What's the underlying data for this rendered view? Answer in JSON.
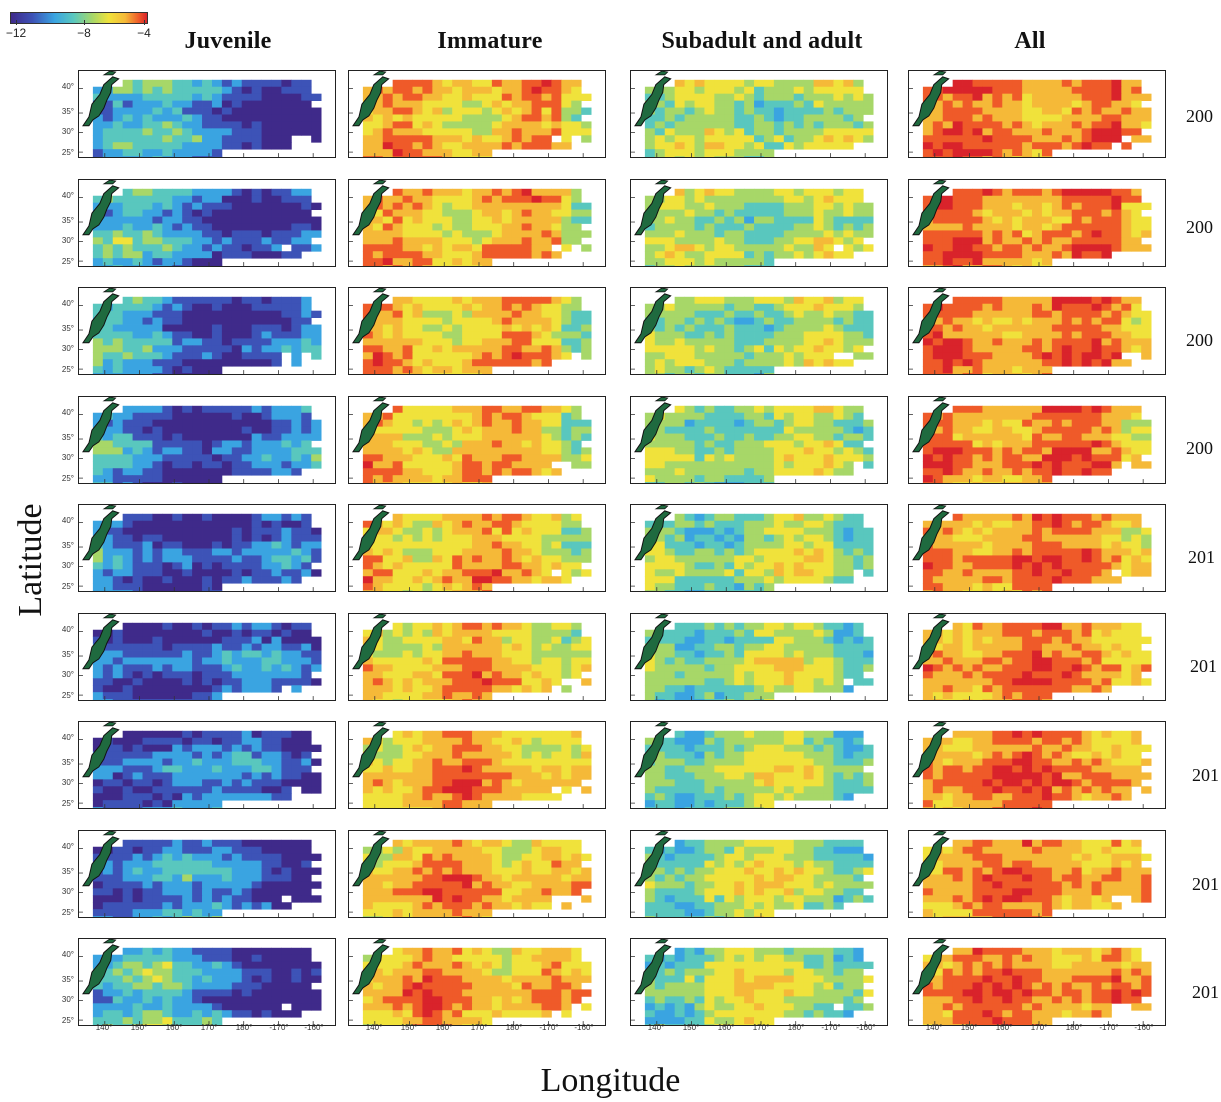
{
  "colorbar": {
    "ticks": [
      "−12",
      "−8",
      "−4"
    ],
    "colors": [
      "#3f2a8a",
      "#3d53b7",
      "#3aa4e1",
      "#59c7be",
      "#a7d768",
      "#f0e23b",
      "#f5b938",
      "#ef5a29",
      "#d9232b"
    ]
  },
  "columns": [
    {
      "title": "Juvenile"
    },
    {
      "title": "Immature"
    },
    {
      "title": "Subadult and adult"
    },
    {
      "title": "All"
    }
  ],
  "axes": {
    "ylabel": "Latitude",
    "xlabel": "Longitude",
    "lat_ticks": [
      "40°",
      "35°",
      "30°",
      "25°"
    ],
    "lon_ticks": [
      "140°",
      "150°",
      "160°",
      "170°",
      "180°",
      "-170°",
      "-160°"
    ]
  },
  "years": [
    "200",
    "200",
    "200",
    "200",
    "201",
    "201",
    "201",
    "201",
    "201"
  ],
  "map": {
    "land_color": "#1f6a3f",
    "land_outline": "#111111",
    "background": "#ffffff"
  }
}
